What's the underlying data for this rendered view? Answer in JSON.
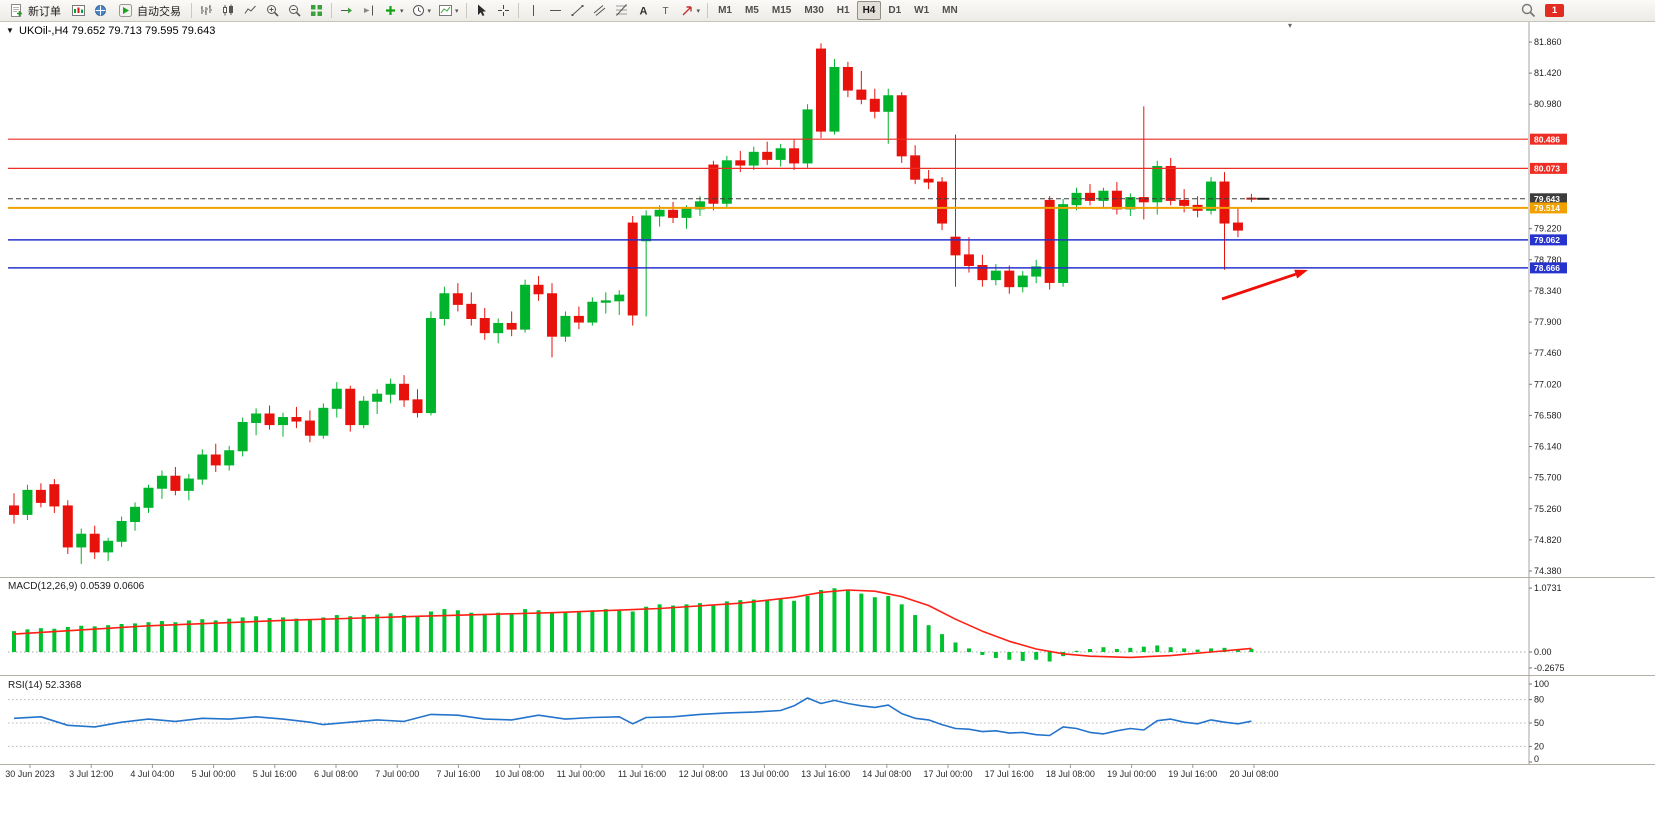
{
  "toolbar": {
    "new_order": "新订单",
    "autotrading": "自动交易",
    "timeframes": [
      "M1",
      "M5",
      "M15",
      "M30",
      "H1",
      "H4",
      "D1",
      "W1",
      "MN"
    ],
    "active_timeframe": "H4",
    "notification_count": "1"
  },
  "chart": {
    "title": "UKOil-,H4 79.652 79.713 79.595 79.643"
  },
  "chart_data": {
    "type": "candlestick",
    "symbol": "UKOil-",
    "timeframe": "H4",
    "ohlc_current": {
      "open": 79.652,
      "high": 79.713,
      "low": 79.595,
      "close": 79.643
    },
    "price_range": [
      74.38,
      81.86
    ],
    "colors": {
      "up": "#00b32c",
      "down": "#e8120c",
      "level_red": "#ee2e24",
      "level_orange": "#f0a000",
      "level_blue": "#2633cc",
      "current_price": "#3c3c3c",
      "macd_hist": "#00c22e",
      "macd_signal": "#ff2015",
      "rsi_line": "#2574cc"
    },
    "price_axis_ticks": [
      "81.860",
      "81.420",
      "80.980",
      "79.220",
      "78.780",
      "78.340",
      "77.900",
      "77.460",
      "77.020",
      "76.580",
      "76.140",
      "75.700",
      "75.260",
      "74.820",
      "74.380"
    ],
    "levels": [
      {
        "price": 80.486,
        "label": "80.486",
        "color": "#ee2e24",
        "style": "solid",
        "width": 1.2
      },
      {
        "price": 80.073,
        "label": "80.073",
        "color": "#ee2e24",
        "style": "solid",
        "width": 1.2
      },
      {
        "price": 79.643,
        "label": "79.643",
        "color": "#3c3c3c",
        "style": "dash",
        "width": 1,
        "current": true
      },
      {
        "price": 79.514,
        "label": "79.514",
        "color": "#f0a000",
        "style": "solid",
        "width": 2
      },
      {
        "price": 79.062,
        "label": "79.062",
        "color": "#2633cc",
        "style": "solid",
        "width": 1.4
      },
      {
        "price": 78.666,
        "label": "78.666",
        "color": "#2633cc",
        "style": "solid",
        "width": 1.4
      }
    ],
    "candles": [
      [
        75.3,
        75.48,
        75.05,
        75.18
      ],
      [
        75.18,
        75.6,
        75.1,
        75.52
      ],
      [
        75.52,
        75.62,
        75.28,
        75.35
      ],
      [
        75.6,
        75.68,
        75.2,
        75.3
      ],
      [
        75.3,
        75.38,
        74.62,
        74.72
      ],
      [
        74.72,
        74.98,
        74.48,
        74.9
      ],
      [
        74.9,
        75.02,
        74.55,
        74.65
      ],
      [
        74.65,
        74.85,
        74.52,
        74.8
      ],
      [
        74.8,
        75.15,
        74.72,
        75.08
      ],
      [
        75.08,
        75.35,
        74.95,
        75.28
      ],
      [
        75.28,
        75.6,
        75.2,
        75.55
      ],
      [
        75.55,
        75.8,
        75.4,
        75.72
      ],
      [
        75.72,
        75.85,
        75.45,
        75.52
      ],
      [
        75.52,
        75.75,
        75.38,
        75.68
      ],
      [
        75.68,
        76.1,
        75.6,
        76.02
      ],
      [
        76.02,
        76.18,
        75.78,
        75.88
      ],
      [
        75.88,
        76.15,
        75.8,
        76.08
      ],
      [
        76.08,
        76.55,
        76.0,
        76.48
      ],
      [
        76.48,
        76.68,
        76.3,
        76.6
      ],
      [
        76.6,
        76.72,
        76.38,
        76.45
      ],
      [
        76.45,
        76.62,
        76.28,
        76.55
      ],
      [
        76.55,
        76.7,
        76.4,
        76.5
      ],
      [
        76.5,
        76.65,
        76.2,
        76.3
      ],
      [
        76.3,
        76.75,
        76.25,
        76.68
      ],
      [
        76.68,
        77.05,
        76.55,
        76.95
      ],
      [
        76.95,
        77.0,
        76.35,
        76.45
      ],
      [
        76.45,
        76.85,
        76.4,
        76.78
      ],
      [
        76.78,
        76.95,
        76.6,
        76.88
      ],
      [
        76.88,
        77.1,
        76.75,
        77.02
      ],
      [
        77.02,
        77.15,
        76.7,
        76.8
      ],
      [
        76.8,
        76.95,
        76.55,
        76.62
      ],
      [
        76.62,
        78.05,
        76.58,
        77.95
      ],
      [
        77.95,
        78.4,
        77.85,
        78.3
      ],
      [
        78.3,
        78.45,
        78.05,
        78.15
      ],
      [
        78.15,
        78.32,
        77.85,
        77.95
      ],
      [
        77.95,
        78.1,
        77.65,
        77.75
      ],
      [
        77.75,
        77.95,
        77.6,
        77.88
      ],
      [
        77.88,
        78.05,
        77.7,
        77.8
      ],
      [
        77.8,
        78.5,
        77.75,
        78.42
      ],
      [
        78.42,
        78.55,
        78.2,
        78.3
      ],
      [
        78.3,
        78.45,
        77.4,
        77.7
      ],
      [
        77.7,
        78.05,
        77.62,
        77.98
      ],
      [
        77.98,
        78.12,
        77.8,
        77.9
      ],
      [
        77.9,
        78.25,
        77.85,
        78.18
      ],
      [
        78.18,
        78.32,
        78.02,
        78.2
      ],
      [
        78.2,
        78.35,
        78.0,
        78.28
      ],
      [
        79.3,
        79.4,
        77.85,
        78.0
      ],
      [
        79.05,
        79.48,
        77.98,
        79.4
      ],
      [
        79.4,
        79.55,
        79.25,
        79.48
      ],
      [
        79.48,
        79.6,
        79.3,
        79.38
      ],
      [
        79.38,
        79.55,
        79.22,
        79.5
      ],
      [
        79.5,
        79.68,
        79.4,
        79.6
      ],
      [
        80.12,
        80.18,
        79.48,
        79.58
      ],
      [
        79.58,
        80.25,
        79.52,
        80.18
      ],
      [
        80.18,
        80.32,
        80.02,
        80.12
      ],
      [
        80.12,
        80.38,
        80.05,
        80.3
      ],
      [
        80.3,
        80.45,
        80.12,
        80.2
      ],
      [
        80.2,
        80.42,
        80.1,
        80.35
      ],
      [
        80.35,
        80.48,
        80.05,
        80.15
      ],
      [
        80.15,
        80.98,
        80.08,
        80.9
      ],
      [
        81.76,
        81.84,
        80.5,
        80.6
      ],
      [
        80.6,
        81.62,
        80.55,
        81.5
      ],
      [
        81.5,
        81.58,
        81.08,
        81.18
      ],
      [
        81.18,
        81.45,
        80.98,
        81.05
      ],
      [
        81.05,
        81.2,
        80.78,
        80.88
      ],
      [
        80.88,
        81.2,
        80.42,
        81.1
      ],
      [
        81.1,
        81.15,
        80.15,
        80.25
      ],
      [
        80.25,
        80.4,
        79.85,
        79.92
      ],
      [
        79.92,
        80.05,
        79.78,
        79.88
      ],
      [
        79.88,
        79.95,
        79.2,
        79.3
      ],
      [
        79.1,
        80.55,
        78.4,
        78.85
      ],
      [
        78.85,
        79.1,
        78.6,
        78.7
      ],
      [
        78.7,
        78.85,
        78.4,
        78.5
      ],
      [
        78.5,
        78.72,
        78.42,
        78.62
      ],
      [
        78.62,
        78.7,
        78.3,
        78.4
      ],
      [
        78.4,
        78.62,
        78.32,
        78.55
      ],
      [
        78.55,
        78.78,
        78.45,
        78.68
      ],
      [
        79.62,
        79.68,
        78.36,
        78.46
      ],
      [
        78.46,
        79.64,
        78.4,
        79.56
      ],
      [
        79.56,
        79.8,
        79.48,
        79.72
      ],
      [
        79.72,
        79.85,
        79.55,
        79.62
      ],
      [
        79.62,
        79.8,
        79.52,
        79.75
      ],
      [
        79.75,
        79.88,
        79.42,
        79.5
      ],
      [
        79.5,
        79.72,
        79.4,
        79.66
      ],
      [
        79.66,
        80.95,
        79.35,
        79.6
      ],
      [
        79.6,
        80.18,
        79.42,
        80.1
      ],
      [
        80.1,
        80.22,
        79.55,
        79.62
      ],
      [
        79.62,
        79.78,
        79.45,
        79.55
      ],
      [
        79.55,
        79.68,
        79.38,
        79.48
      ],
      [
        79.48,
        79.95,
        79.42,
        79.88
      ],
      [
        79.88,
        80.02,
        78.64,
        79.3
      ],
      [
        79.3,
        79.52,
        79.1,
        79.2
      ],
      [
        79.652,
        79.713,
        79.595,
        79.643
      ]
    ],
    "time_labels": [
      "30 Jun 2023",
      "3 Jul 12:00",
      "4 Jul 04:00",
      "5 Jul 00:00",
      "5 Jul 16:00",
      "6 Jul 08:00",
      "7 Jul 00:00",
      "7 Jul 16:00",
      "10 Jul 08:00",
      "11 Jul 00:00",
      "11 Jul 16:00",
      "12 Jul 08:00",
      "13 Jul 00:00",
      "13 Jul 16:00",
      "14 Jul 08:00",
      "17 Jul 00:00",
      "17 Jul 16:00",
      "18 Jul 08:00",
      "19 Jul 00:00",
      "19 Jul 16:00",
      "20 Jul 08:00"
    ],
    "macd": {
      "label": "MACD(12,26,9) 0.0539 0.0606",
      "params": "12,26,9",
      "value_main": 0.0539,
      "value_signal": 0.0606,
      "axis_labels": [
        "1.0731",
        "0.00",
        "-0.2675"
      ],
      "histogram": [
        0.35,
        0.38,
        0.4,
        0.39,
        0.42,
        0.44,
        0.43,
        0.45,
        0.47,
        0.48,
        0.5,
        0.52,
        0.5,
        0.53,
        0.55,
        0.53,
        0.56,
        0.58,
        0.6,
        0.57,
        0.58,
        0.56,
        0.55,
        0.58,
        0.62,
        0.6,
        0.62,
        0.63,
        0.65,
        0.62,
        0.6,
        0.68,
        0.72,
        0.7,
        0.66,
        0.64,
        0.66,
        0.65,
        0.72,
        0.7,
        0.66,
        0.68,
        0.67,
        0.7,
        0.72,
        0.71,
        0.68,
        0.76,
        0.8,
        0.78,
        0.8,
        0.82,
        0.78,
        0.85,
        0.87,
        0.88,
        0.86,
        0.9,
        0.86,
        0.94,
        1.04,
        1.07,
        1.03,
        0.98,
        0.92,
        0.94,
        0.8,
        0.62,
        0.45,
        0.3,
        0.16,
        0.06,
        -0.05,
        -0.1,
        -0.13,
        -0.15,
        -0.13,
        -0.16,
        -0.07,
        0.02,
        0.05,
        0.08,
        0.05,
        0.07,
        0.09,
        0.11,
        0.08,
        0.06,
        0.04,
        0.06,
        0.07,
        0.05,
        0.054
      ],
      "signal_points": [
        [
          0,
          0.3
        ],
        [
          10,
          0.44
        ],
        [
          20,
          0.53
        ],
        [
          30,
          0.6
        ],
        [
          40,
          0.66
        ],
        [
          48,
          0.73
        ],
        [
          54,
          0.82
        ],
        [
          58,
          0.92
        ],
        [
          60,
          1.0
        ],
        [
          62,
          1.04
        ],
        [
          64,
          1.02
        ],
        [
          66,
          0.93
        ],
        [
          68,
          0.78
        ],
        [
          70,
          0.55
        ],
        [
          72,
          0.35
        ],
        [
          74,
          0.18
        ],
        [
          76,
          0.05
        ],
        [
          78,
          -0.03
        ],
        [
          80,
          -0.07
        ],
        [
          83,
          -0.09
        ],
        [
          86,
          -0.06
        ],
        [
          89,
          0.0
        ],
        [
          92,
          0.06
        ]
      ]
    },
    "rsi": {
      "label": "RSI(14) 52.3368",
      "period": 14,
      "value": 52.3368,
      "axis_labels": [
        "100",
        "80",
        "50",
        "20",
        "0"
      ],
      "level_lines": [
        80,
        50,
        20
      ],
      "points": [
        [
          0,
          56
        ],
        [
          2,
          58
        ],
        [
          4,
          47
        ],
        [
          6,
          45
        ],
        [
          8,
          51
        ],
        [
          10,
          55
        ],
        [
          12,
          52
        ],
        [
          14,
          56
        ],
        [
          16,
          55
        ],
        [
          18,
          58
        ],
        [
          20,
          55
        ],
        [
          22,
          51
        ],
        [
          23,
          48
        ],
        [
          25,
          51
        ],
        [
          27,
          54
        ],
        [
          29,
          52
        ],
        [
          31,
          61
        ],
        [
          33,
          60
        ],
        [
          35,
          55
        ],
        [
          37,
          54
        ],
        [
          39,
          60
        ],
        [
          41,
          55
        ],
        [
          43,
          57
        ],
        [
          45,
          58
        ],
        [
          46,
          49
        ],
        [
          47,
          57
        ],
        [
          49,
          58
        ],
        [
          51,
          61
        ],
        [
          53,
          63
        ],
        [
          55,
          64
        ],
        [
          57,
          66
        ],
        [
          58,
          72
        ],
        [
          59,
          82
        ],
        [
          60,
          75
        ],
        [
          61,
          79
        ],
        [
          62,
          75
        ],
        [
          63,
          72
        ],
        [
          64,
          70
        ],
        [
          65,
          73
        ],
        [
          66,
          62
        ],
        [
          67,
          56
        ],
        [
          68,
          54
        ],
        [
          69,
          48
        ],
        [
          70,
          43
        ],
        [
          71,
          42
        ],
        [
          72,
          39
        ],
        [
          73,
          40
        ],
        [
          74,
          37
        ],
        [
          75,
          38
        ],
        [
          76,
          35
        ],
        [
          77,
          34
        ],
        [
          78,
          45
        ],
        [
          79,
          43
        ],
        [
          80,
          38
        ],
        [
          81,
          36
        ],
        [
          82,
          40
        ],
        [
          83,
          43
        ],
        [
          84,
          41
        ],
        [
          85,
          53
        ],
        [
          86,
          55
        ],
        [
          87,
          51
        ],
        [
          88,
          49
        ],
        [
          89,
          54
        ],
        [
          90,
          51
        ],
        [
          91,
          49
        ],
        [
          92,
          52.3
        ]
      ]
    },
    "annotation_arrow": {
      "from": [
        1222,
        299
      ],
      "to": [
        1308,
        270
      ],
      "color": "#f00f08"
    }
  }
}
